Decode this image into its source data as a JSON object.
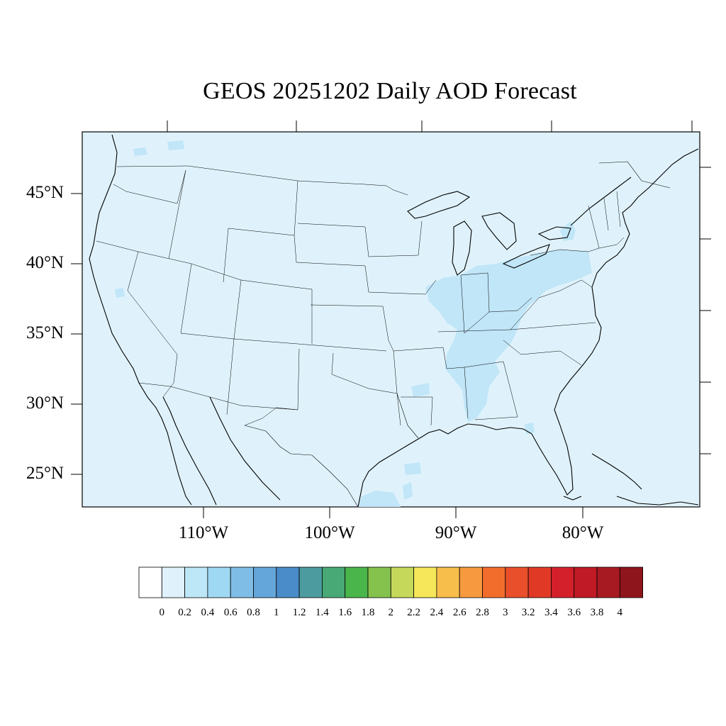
{
  "title": "GEOS 20251202 Daily AOD Forecast",
  "map": {
    "background_color": "#dff2fb",
    "enhanced_color": "#c0e6f8",
    "border_color": "#000000",
    "lat_labels": [
      "45°N",
      "40°N",
      "35°N",
      "30°N",
      "25°N"
    ],
    "lon_labels": [
      "110°W",
      "100°W",
      "90°W",
      "80°W"
    ]
  },
  "colorbar": {
    "labels": [
      "0",
      "0.2",
      "0.4",
      "0.6",
      "0.8",
      "1",
      "1.2",
      "1.4",
      "1.6",
      "1.8",
      "2",
      "2.2",
      "2.4",
      "2.6",
      "2.8",
      "3",
      "3.2",
      "3.4",
      "3.6",
      "3.8",
      "4"
    ],
    "colors": [
      "#ffffff",
      "#dff2fb",
      "#bde6f7",
      "#9fd8f3",
      "#80bde6",
      "#64a6d9",
      "#4a8cc9",
      "#4c9c9f",
      "#48a876",
      "#4ab54b",
      "#85c24d",
      "#c5d85a",
      "#f6e75a",
      "#f8be4c",
      "#f79a3f",
      "#f26c2c",
      "#e84f2a",
      "#e03a27",
      "#d4202a",
      "#bf1a25",
      "#a81a21",
      "#8e151b"
    ]
  }
}
